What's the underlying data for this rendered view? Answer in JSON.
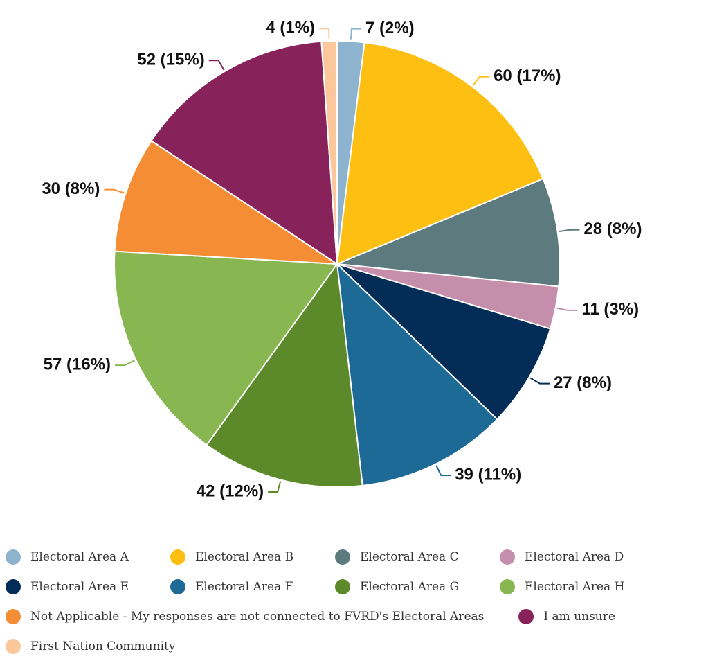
{
  "chart_data": {
    "type": "pie",
    "categories": [
      "Electoral Area A",
      "Electoral Area B",
      "Electoral Area C",
      "Electoral Area D",
      "Electoral Area E",
      "Electoral Area F",
      "Electoral Area G",
      "Electoral Area H",
      "Not Applicable - My responses are not connected to FVRD's Electoral Areas",
      "I am unsure",
      "First Nation Community"
    ],
    "values": [
      7,
      60,
      28,
      11,
      27,
      39,
      42,
      57,
      30,
      52,
      4
    ],
    "value_labels": [
      "7 (2%)",
      "60 (17%)",
      "28 (8%)",
      "11 (3%)",
      "27 (8%)",
      "39 (11%)",
      "42 (12%)",
      "57 (16%)",
      "30 (8%)",
      "52 (15%)",
      "4 (1%)"
    ],
    "colors": [
      "#8db3cf",
      "#fdbf11",
      "#5d7a7e",
      "#c58fab",
      "#032d56",
      "#1d6a96",
      "#5c8a2b",
      "#88b651",
      "#f58d35",
      "#88225a",
      "#fcc89b"
    ],
    "legend": "bottom"
  }
}
